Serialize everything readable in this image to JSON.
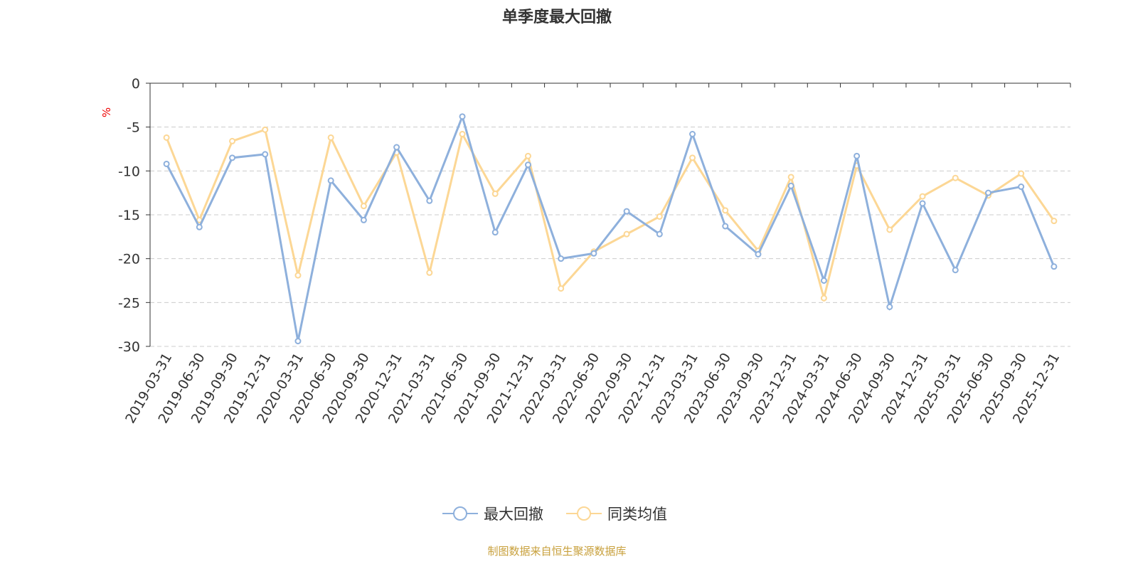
{
  "chart_data": {
    "type": "line",
    "title": "单季度最大回撤",
    "ylabel": "%",
    "xlabel": "",
    "ylim": [
      -30,
      0
    ],
    "yticks": [
      0,
      -5,
      -10,
      -15,
      -20,
      -25,
      -30
    ],
    "grid": true,
    "legend_position": "bottom",
    "categories": [
      "2019-03-31",
      "2019-06-30",
      "2019-09-30",
      "2019-12-31",
      "2020-03-31",
      "2020-06-30",
      "2020-09-30",
      "2020-12-31",
      "2021-03-31",
      "2021-06-30",
      "2021-09-30",
      "2021-12-31",
      "2022-03-31",
      "2022-06-30",
      "2022-09-30",
      "2022-12-31",
      "2023-03-31",
      "2023-06-30",
      "2023-09-30",
      "2023-12-31",
      "2024-03-31",
      "2024-06-30",
      "2024-09-30",
      "2024-12-31",
      "2025-03-31",
      "2025-06-30",
      "2025-09-30",
      "2025-12-31"
    ],
    "series": [
      {
        "name": "最大回撤",
        "color": "#8eb0dc",
        "values": [
          -9.2,
          -16.4,
          -8.5,
          -8.1,
          -29.4,
          -11.1,
          -15.6,
          -7.3,
          -13.4,
          -3.8,
          -17.0,
          -9.3,
          -20.0,
          -19.4,
          -14.6,
          -17.2,
          -5.8,
          -16.3,
          -19.5,
          -11.7,
          -22.5,
          -8.3,
          -25.5,
          -13.7,
          -21.3,
          -12.5,
          -11.8,
          -20.9
        ]
      },
      {
        "name": "同类均值",
        "color": "#fcd795",
        "values": [
          -6.2,
          -15.6,
          -6.6,
          -5.3,
          -21.9,
          -6.2,
          -14.0,
          -7.9,
          -21.6,
          -5.8,
          -12.6,
          -8.3,
          -23.4,
          -19.2,
          -17.2,
          -15.2,
          -8.5,
          -14.5,
          -19.1,
          -10.7,
          -24.5,
          -9.4,
          -16.7,
          -12.9,
          -10.8,
          -12.8,
          -10.3,
          -15.7
        ]
      }
    ],
    "source": "制图数据来自恒生聚源数据库"
  }
}
